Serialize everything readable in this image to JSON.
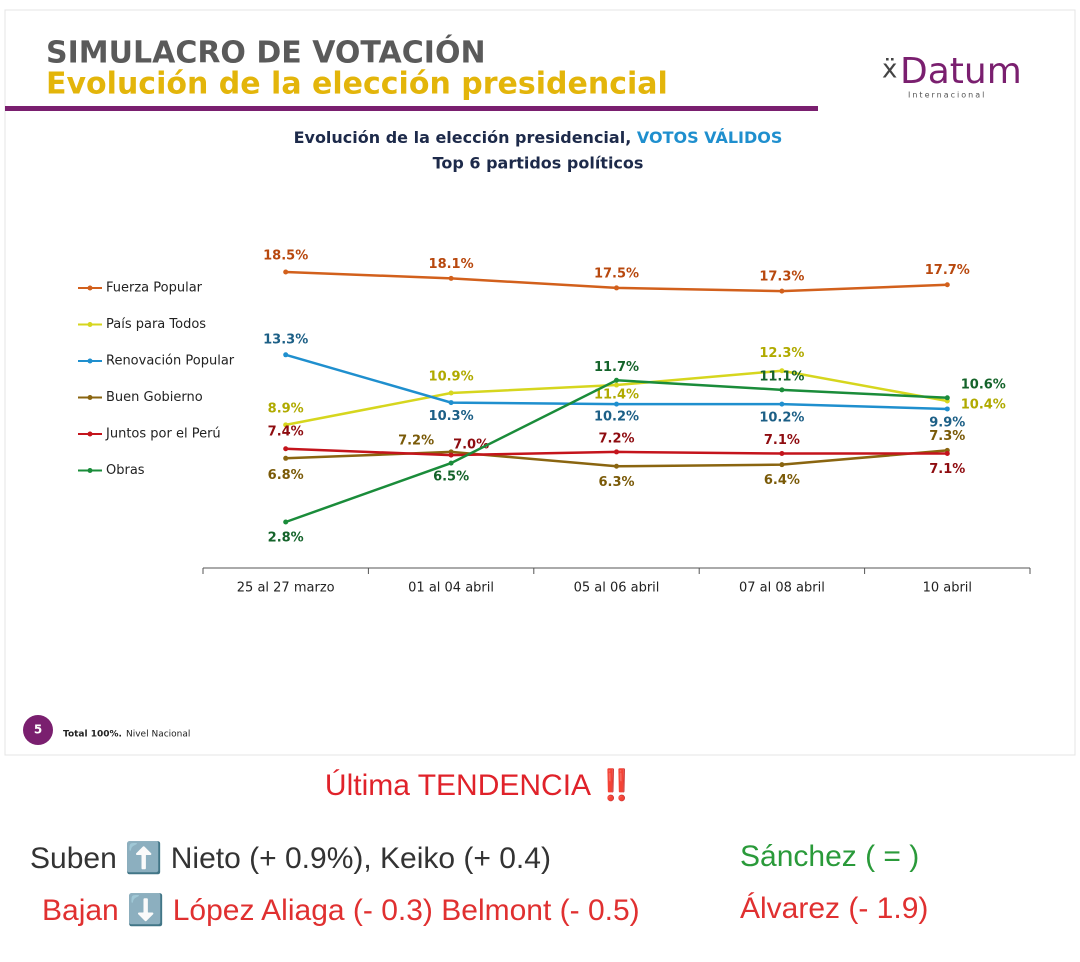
{
  "header": {
    "title": "SIMULACRO DE VOTACIÓN",
    "subtitle": "Evolución de la elección presidencial",
    "logo": "Datum",
    "logo_sub": "Internacional"
  },
  "chart_data": {
    "type": "line",
    "title": "Evolución de la elección presidencial,",
    "title_highlight": "VOTOS VÁLIDOS",
    "subtitle": "Top 6 partidos políticos",
    "categories": [
      "25 al 27 marzo",
      "01 al 04 abril",
      "05 al 06 abril",
      "07 al 08 abril",
      "10 abril"
    ],
    "series": [
      {
        "name": "Fuerza Popular",
        "color": "#d2601c",
        "label_color": "#b8480e",
        "values": [
          18.5,
          18.1,
          17.5,
          17.3,
          17.7
        ],
        "value_labels": [
          "18.5%",
          "18.1%",
          "17.5%",
          "17.3%",
          "17.7%"
        ]
      },
      {
        "name": "País para Todos",
        "color": "#d6d61e",
        "label_color": "#b0aa00",
        "values": [
          8.9,
          10.9,
          11.4,
          12.3,
          10.4
        ],
        "value_labels": [
          "8.9%",
          "10.9%",
          "11.4%",
          "12.3%",
          "10.4%"
        ]
      },
      {
        "name": "Renovación Popular",
        "color": "#1f8fce",
        "label_color": "#1c5f86",
        "values": [
          13.3,
          10.3,
          10.2,
          10.2,
          9.9
        ],
        "value_labels": [
          "13.3%",
          "10.3%",
          "10.2%",
          "10.2%",
          "9.9%"
        ]
      },
      {
        "name": "Buen Gobierno",
        "color": "#8a6510",
        "label_color": "#7a5a08",
        "values": [
          6.8,
          7.2,
          6.3,
          6.4,
          7.3
        ],
        "value_labels": [
          "6.8%",
          "7.2%",
          "6.3%",
          "6.4%",
          "7.3%"
        ]
      },
      {
        "name": "Juntos por el Perú",
        "color": "#c4141c",
        "label_color": "#8e0c10",
        "values": [
          7.4,
          7.0,
          7.2,
          7.1,
          7.1
        ],
        "value_labels": [
          "7.4%",
          "7.0%",
          "7.2%",
          "7.1%",
          "7.1%"
        ]
      },
      {
        "name": "Obras",
        "color": "#1a8c3a",
        "label_color": "#14632a",
        "values": [
          2.8,
          6.5,
          11.7,
          11.1,
          10.6
        ],
        "value_labels": [
          "2.8%",
          "6.5%",
          "11.7%",
          "11.1%",
          "10.6%"
        ]
      }
    ]
  },
  "footer": {
    "page": "5",
    "total": "Total 100%.",
    "scope": "Nivel Nacional"
  },
  "trend": {
    "heading": "Última TENDENCIA ‼️",
    "up": "Suben ⬆️ Nieto (+ 0.9%),   Keiko (+ 0.4)",
    "same": "Sánchez ( = )",
    "down": "Bajan ⬇️ López Aliaga (- 0.3)   Belmont (- 0.5)",
    "down2": "Álvarez (- 1.9)"
  }
}
